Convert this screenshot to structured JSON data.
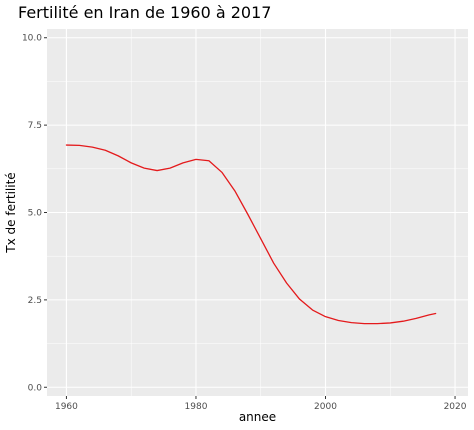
{
  "chart_data": {
    "type": "line",
    "title": "Fertilité en Iran de 1960 à 2017",
    "xlabel": "annee",
    "ylabel": "Tx de fertilité",
    "xlim": [
      1957,
      2022
    ],
    "ylim": [
      -0.25,
      10.25
    ],
    "x_ticks": [
      1960,
      1980,
      2000,
      2020
    ],
    "y_ticks": [
      0,
      2.5,
      5,
      7.5,
      10
    ],
    "y_tick_labels": [
      "0.0",
      "2.5",
      "5.0",
      "7.5",
      "10.0"
    ],
    "x_tick_labels": [
      "1960",
      "1980",
      "2000",
      "2020"
    ],
    "grid": true,
    "series": [
      {
        "line_color": "#e41a1c",
        "x": [
          1960,
          1962,
          1964,
          1966,
          1968,
          1970,
          1972,
          1974,
          1976,
          1978,
          1980,
          1982,
          1984,
          1986,
          1988,
          1990,
          1992,
          1994,
          1996,
          1998,
          2000,
          2002,
          2004,
          2006,
          2008,
          2010,
          2012,
          2014,
          2016,
          2017
        ],
        "values": [
          6.93,
          6.92,
          6.87,
          6.78,
          6.62,
          6.42,
          6.27,
          6.2,
          6.27,
          6.42,
          6.52,
          6.48,
          6.15,
          5.62,
          4.95,
          4.25,
          3.55,
          2.98,
          2.52,
          2.21,
          2.02,
          1.91,
          1.85,
          1.82,
          1.82,
          1.84,
          1.89,
          1.97,
          2.07,
          2.11
        ]
      }
    ],
    "colors": {
      "panel_background": "#ebebeb",
      "grid_major": "#ffffff",
      "tick_text": "#4d4d4d"
    }
  }
}
